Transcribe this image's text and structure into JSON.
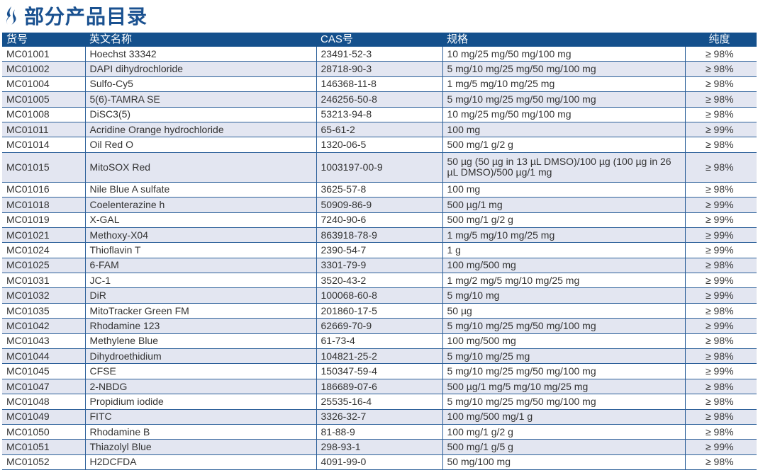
{
  "title": "部分产品目录",
  "headers": [
    "货号",
    "英文名称",
    "CAS号",
    "规格",
    "纯度"
  ],
  "rows": [
    [
      "MC01001",
      "Hoechst 33342",
      "23491-52-3",
      "10 mg/25 mg/50 mg/100 mg",
      "≥ 98%"
    ],
    [
      "MC01002",
      "DAPI dihydrochloride",
      "28718-90-3",
      "5 mg/10 mg/25 mg/50 mg/100 mg",
      "≥ 98%"
    ],
    [
      "MC01004",
      "Sulfo-Cy5",
      "146368-11-8",
      "1 mg/5 mg/10 mg/25 mg",
      "≥ 98%"
    ],
    [
      "MC01005",
      "5(6)-TAMRA SE",
      "246256-50-8",
      "5 mg/10 mg/25 mg/50 mg/100 mg",
      "≥ 98%"
    ],
    [
      "MC01008",
      "DiSC3(5)",
      "53213-94-8",
      "10 mg/25 mg/50 mg/100 mg",
      "≥ 98%"
    ],
    [
      "MC01011",
      "Acridine Orange hydrochloride",
      "65-61-2",
      "100 mg",
      "≥ 99%"
    ],
    [
      "MC01014",
      "Oil Red O",
      "1320-06-5",
      "500 mg/1 g/2 g",
      "≥ 98%"
    ],
    [
      "MC01015",
      "MitoSOX Red",
      "1003197-00-9",
      "50 µg (50 µg in 13 µL DMSO)/100 µg (100 µg in 26 µL DMSO)/500 µg/1 mg",
      "≥ 98%"
    ],
    [
      "MC01016",
      "Nile Blue A sulfate",
      "3625-57-8",
      "100 mg",
      "≥ 98%"
    ],
    [
      "MC01018",
      "Coelenterazine h",
      "50909-86-9",
      "500 µg/1 mg",
      "≥ 99%"
    ],
    [
      "MC01019",
      "X-GAL",
      "7240-90-6",
      "500 mg/1 g/2 g",
      "≥ 99%"
    ],
    [
      "MC01021",
      "Methoxy-X04",
      "863918-78-9",
      "1 mg/5 mg/10 mg/25 mg",
      "≥ 99%"
    ],
    [
      "MC01024",
      "Thioflavin T",
      "2390-54-7",
      "1 g",
      "≥ 99%"
    ],
    [
      "MC01025",
      "6-FAM",
      "3301-79-9",
      "100 mg/500 mg",
      "≥ 98%"
    ],
    [
      "MC01031",
      "JC-1",
      "3520-43-2",
      "1 mg/2 mg/5 mg/10 mg/25 mg",
      "≥ 99%"
    ],
    [
      "MC01032",
      "DiR",
      "100068-60-8",
      "5 mg/10 mg",
      "≥ 99%"
    ],
    [
      "MC01035",
      "MitoTracker Green FM",
      "201860-17-5",
      "50 µg",
      "≥ 98%"
    ],
    [
      "MC01042",
      "Rhodamine 123",
      "62669-70-9",
      "5 mg/10 mg/25 mg/50 mg/100 mg",
      "≥ 99%"
    ],
    [
      "MC01043",
      "Methylene Blue",
      "61-73-4",
      "100 mg/500 mg",
      "≥ 98%"
    ],
    [
      "MC01044",
      "Dihydroethidium",
      "104821-25-2",
      "5 mg/10 mg/25 mg",
      "≥ 98%"
    ],
    [
      "MC01045",
      "CFSE",
      "150347-59-4",
      "5 mg/10 mg/25 mg/50 mg/100 mg",
      "≥ 99%"
    ],
    [
      "MC01047",
      "2-NBDG",
      "186689-07-6",
      "500 µg/1 mg/5 mg/10 mg/25 mg",
      "≥ 98%"
    ],
    [
      "MC01048",
      "Propidium iodide",
      "25535-16-4",
      "5 mg/10 mg/25 mg/50 mg/100 mg",
      "≥ 98%"
    ],
    [
      "MC01049",
      "FITC",
      "3326-32-7",
      "100 mg/500 mg/1 g",
      "≥ 98%"
    ],
    [
      "MC01050",
      "Rhodamine B",
      "81-88-9",
      "100 mg/1 g/2 g",
      "≥ 98%"
    ],
    [
      "MC01051",
      "Thiazolyl Blue",
      "298-93-1",
      "500 mg/1 g/5 g",
      "≥ 99%"
    ],
    [
      "MC01052",
      "H2DCFDA",
      "4091-99-0",
      "50 mg/100 mg",
      "≥ 98%"
    ]
  ]
}
